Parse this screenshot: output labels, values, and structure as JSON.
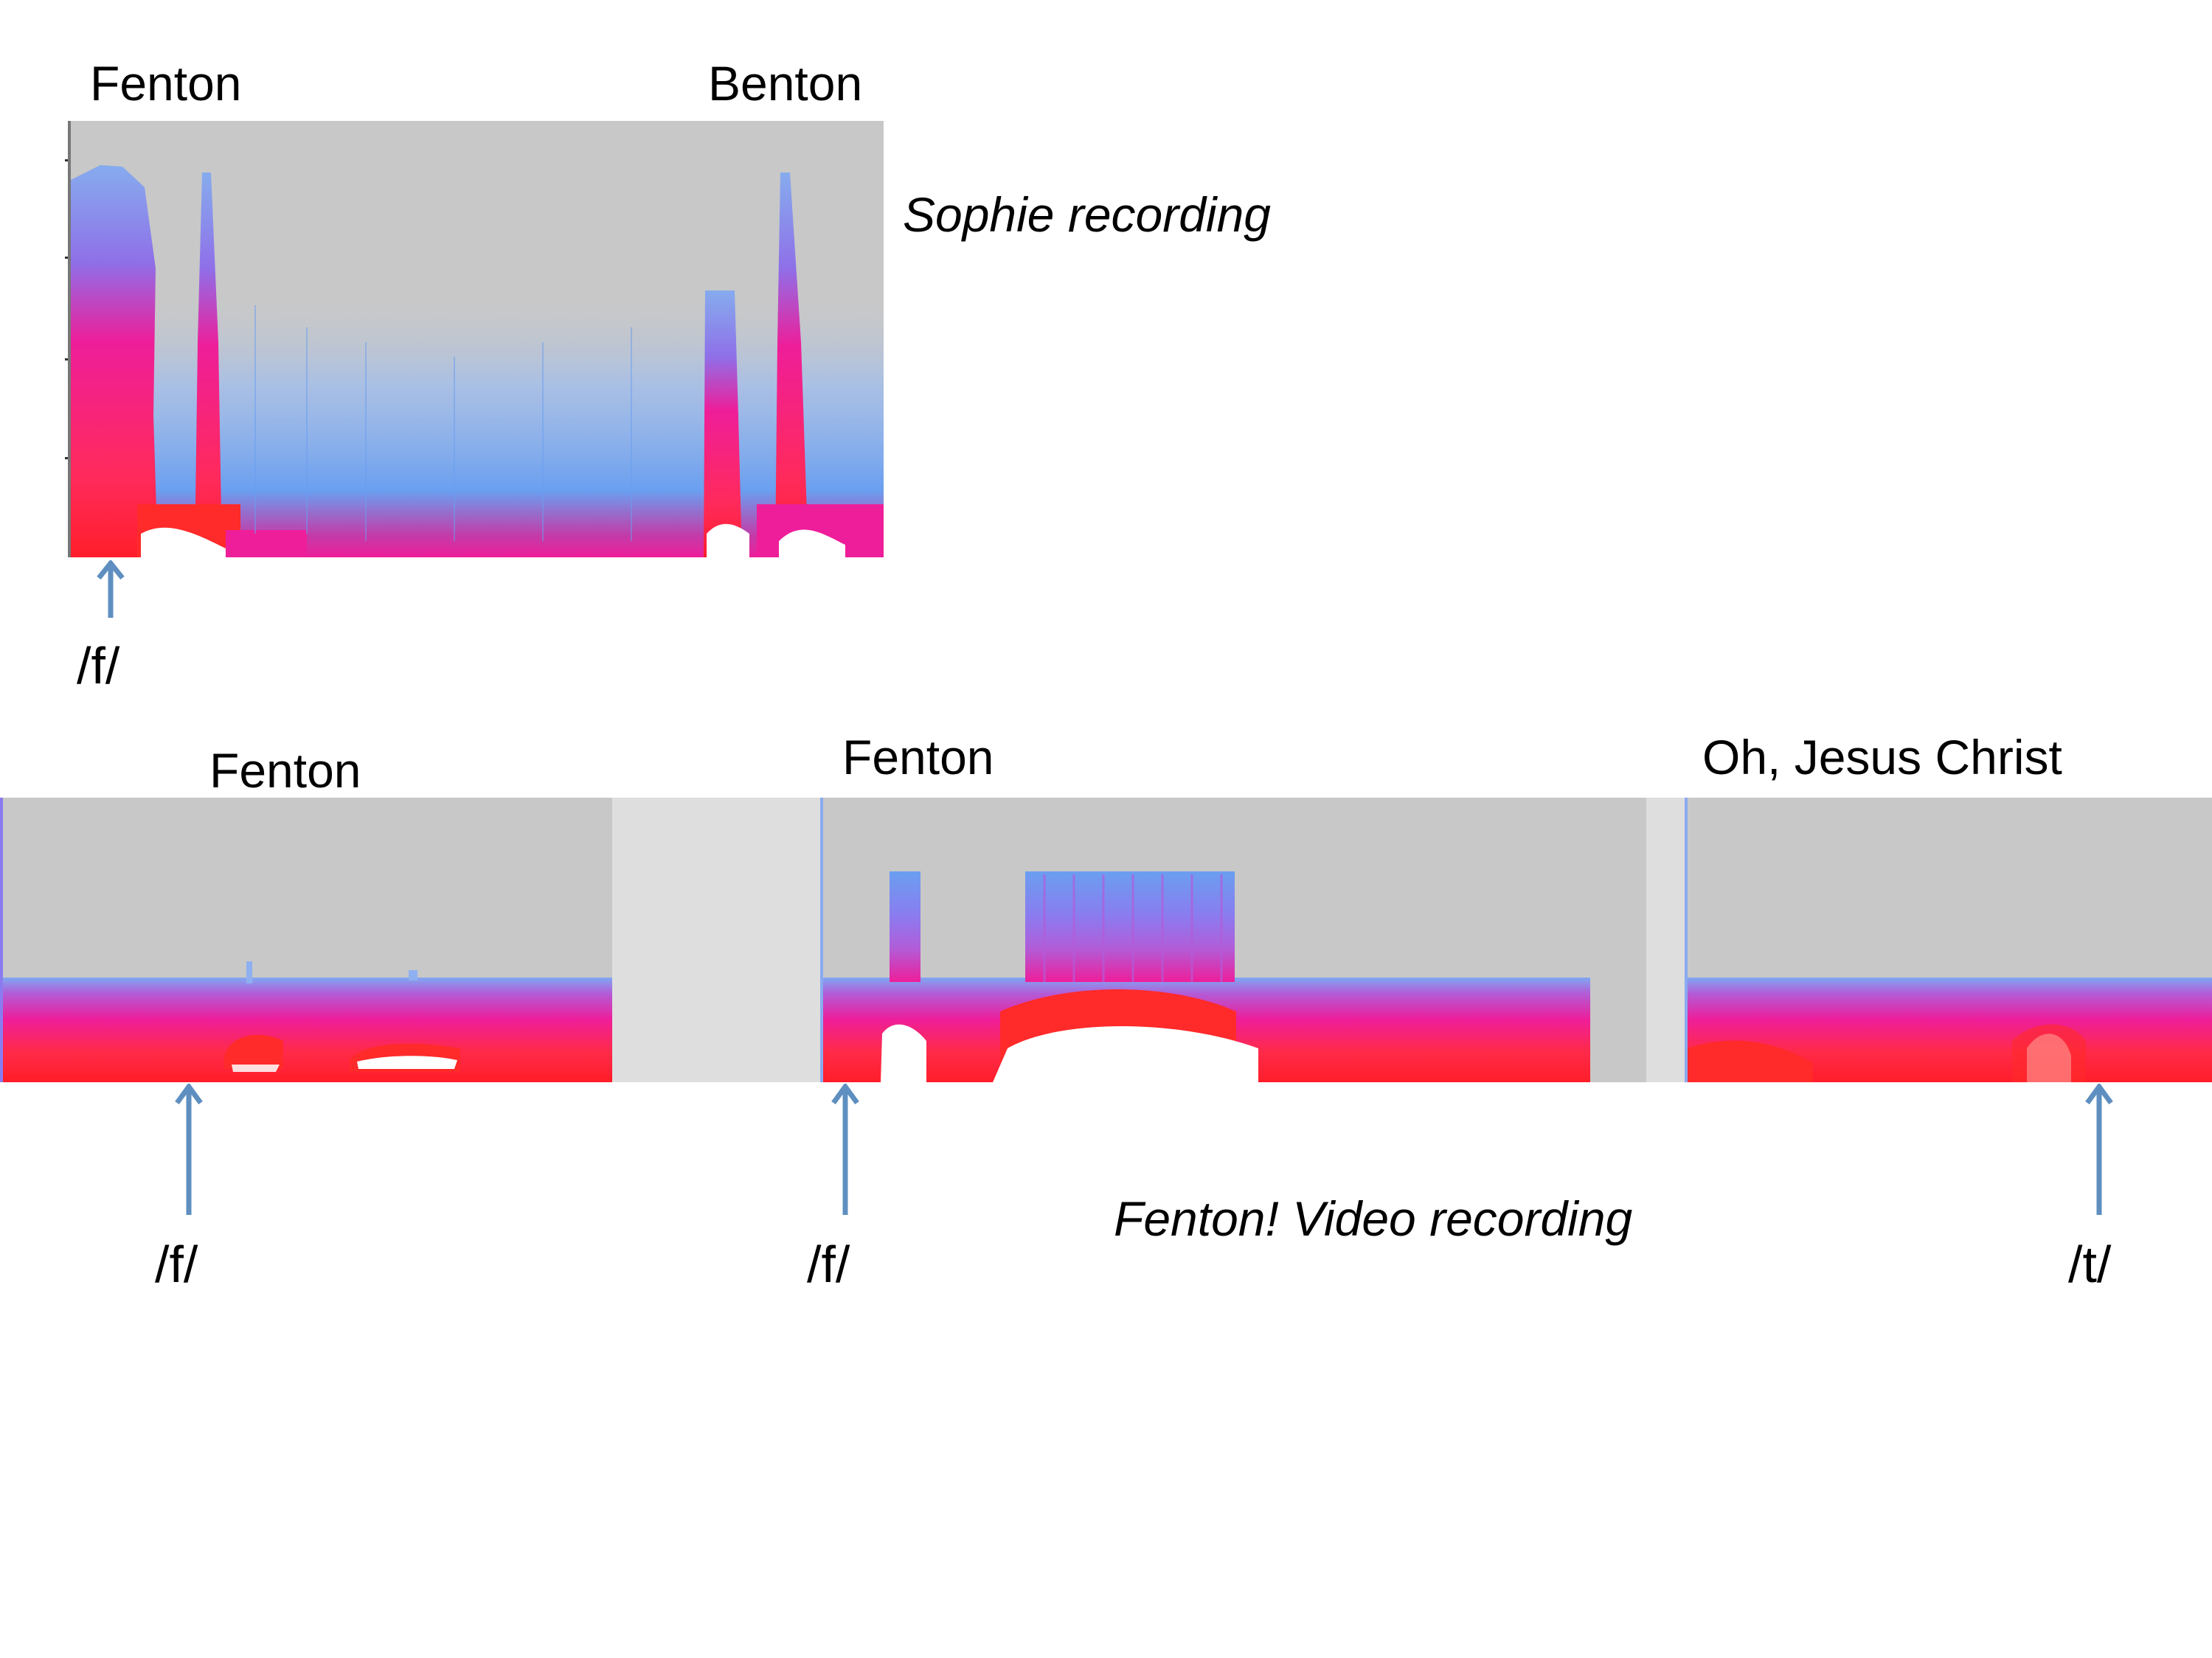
{
  "top": {
    "labels": {
      "word_left": "Fenton",
      "word_right": "Benton"
    },
    "caption": "Sophie recording",
    "phoneme": "/f/"
  },
  "bottom": {
    "panel1": {
      "word": "Fenton",
      "phoneme": "/f/"
    },
    "panel2": {
      "word": "Fenton",
      "phoneme": "/f/"
    },
    "panel3": {
      "word": "Oh, Jesus Christ",
      "phoneme": "/t/"
    },
    "caption": "Fenton! Video recording"
  },
  "colors": {
    "background": "#c8c8c8",
    "gap": "#dedede",
    "low_energy": "#6aa0f0",
    "mid_energy": "#ee1e9a",
    "high_energy": "#ff2a2a",
    "peak_energy": "#ffffff",
    "arrow": "#5f8fc0"
  },
  "icons": [
    "up-arrow-icon"
  ]
}
